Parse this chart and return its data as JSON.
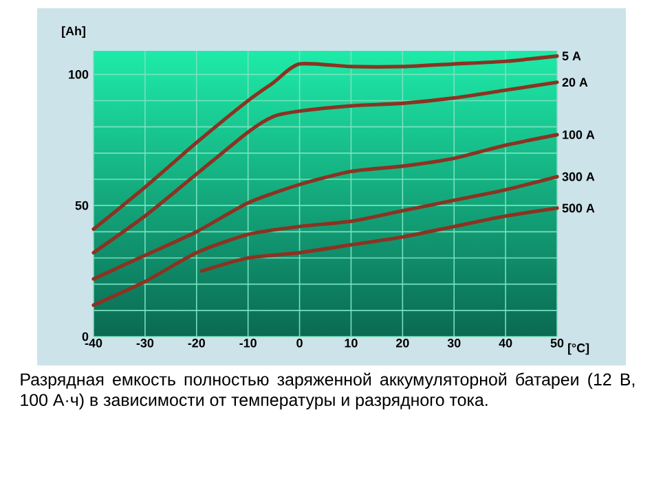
{
  "chart_data": {
    "type": "line",
    "ylabel": "[Ah]",
    "xlabel": "[°C]",
    "xlim": [
      -40,
      50
    ],
    "xticks": [
      -40,
      -30,
      -20,
      -10,
      0,
      10,
      20,
      30,
      40,
      50
    ],
    "ylim": [
      0,
      109
    ],
    "yticks": [
      0,
      {
        "value": 10,
        "label": null
      },
      {
        "value": 20,
        "label": null
      },
      {
        "value": 30,
        "label": null
      },
      {
        "value": 40,
        "label": null
      },
      50,
      {
        "value": 60,
        "label": null
      },
      {
        "value": 70,
        "label": null
      },
      {
        "value": 80,
        "label": null
      },
      {
        "value": 90,
        "label": null
      },
      100
    ],
    "grid": true,
    "legend": false,
    "line_style": "solid",
    "series": [
      {
        "name": "5 A",
        "color": "#8b3322",
        "x": [
          -40,
          -30,
          -20,
          -10,
          -5,
          0,
          10,
          20,
          30,
          40,
          50
        ],
        "values": [
          41,
          57,
          74,
          90,
          97,
          104,
          103,
          103,
          104,
          105,
          107
        ]
      },
      {
        "name": "20 A",
        "color": "#8b3322",
        "x": [
          -40,
          -30,
          -20,
          -10,
          -5,
          0,
          10,
          20,
          30,
          40,
          50
        ],
        "values": [
          32,
          46,
          62,
          78,
          84,
          86,
          88,
          89,
          91,
          94,
          97
        ]
      },
      {
        "name": "100 A",
        "color": "#8b3322",
        "x": [
          -40,
          -30,
          -20,
          -10,
          0,
          10,
          20,
          30,
          40,
          50
        ],
        "values": [
          22,
          31,
          40,
          51,
          58,
          63,
          65,
          68,
          73,
          77
        ]
      },
      {
        "name": "300 A",
        "color": "#8b3322",
        "x": [
          -40,
          -30,
          -20,
          -10,
          0,
          10,
          20,
          30,
          40,
          50
        ],
        "values": [
          12,
          21,
          32,
          39,
          42,
          44,
          48,
          52,
          56,
          61
        ]
      },
      {
        "name": "500 A",
        "color": "#8b3322",
        "x": [
          -19,
          -10,
          0,
          10,
          20,
          30,
          40,
          50
        ],
        "values": [
          25,
          30,
          32,
          35,
          38,
          42,
          46,
          49
        ]
      }
    ],
    "annotations": [
      "Разрядная емкость полностью заряженной аккумуляторной батареи (12 В, 100 А·ч) в зависимости от температуры и разрядного тока."
    ]
  }
}
